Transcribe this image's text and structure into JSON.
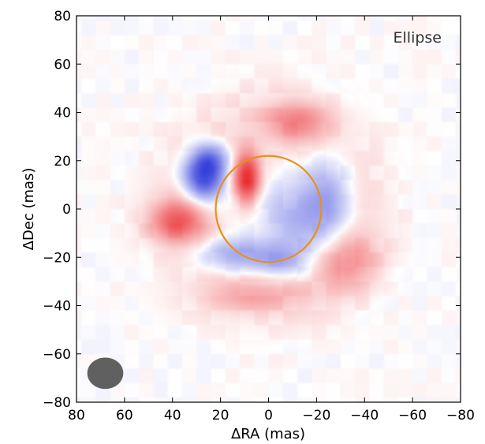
{
  "chart_data": {
    "type": "heatmap",
    "title": "",
    "panel_label": "Ellipse",
    "xlabel": "ΔRA (mas)",
    "ylabel": "ΔDec (mas)",
    "xlim": [
      80,
      -80
    ],
    "ylim": [
      -80,
      80
    ],
    "xticks": [
      80,
      60,
      40,
      20,
      0,
      -20,
      -40,
      -60,
      -80
    ],
    "yticks": [
      -80,
      -60,
      -40,
      -20,
      0,
      20,
      40,
      60,
      80
    ],
    "xtick_labels": [
      "80",
      "60",
      "40",
      "20",
      "0",
      "−20",
      "−40",
      "−60",
      "−80"
    ],
    "ytick_labels": [
      "−80",
      "−60",
      "−40",
      "−20",
      "0",
      "20",
      "40",
      "60",
      "80"
    ],
    "colormap": {
      "negative": "#1f2ad6",
      "zero": "#ffffff",
      "positive": "#e8161b"
    },
    "image_features": [
      {
        "kind": "negative",
        "x": 27,
        "y": 14,
        "sx": 6,
        "sy": 7,
        "amp": 0.95
      },
      {
        "kind": "negative",
        "x": 23,
        "y": 21,
        "sx": 5,
        "sy": 4,
        "amp": 0.35
      },
      {
        "kind": "negative",
        "x": -25,
        "y": 5,
        "sx": 7,
        "sy": 12,
        "amp": 0.38
      },
      {
        "kind": "negative",
        "x": -12,
        "y": -5,
        "sx": 10,
        "sy": 12,
        "amp": 0.3
      },
      {
        "kind": "negative",
        "x": 15,
        "y": -19,
        "sx": 11,
        "sy": 5,
        "amp": 0.4
      },
      {
        "kind": "negative",
        "x": -5,
        "y": -22,
        "sx": 9,
        "sy": 5,
        "amp": 0.28
      },
      {
        "kind": "positive",
        "x": 9,
        "y": 13,
        "sx": 4,
        "sy": 7,
        "amp": 0.9
      },
      {
        "kind": "positive",
        "x": 38,
        "y": -5,
        "sx": 8,
        "sy": 6,
        "amp": 0.6
      },
      {
        "kind": "positive",
        "x": -12,
        "y": 36,
        "sx": 9,
        "sy": 6,
        "amp": 0.38
      },
      {
        "kind": "positive",
        "x": -33,
        "y": -22,
        "sx": 9,
        "sy": 8,
        "amp": 0.33
      },
      {
        "kind": "positive",
        "x": 5,
        "y": -35,
        "sx": 14,
        "sy": 5,
        "amp": 0.22
      },
      {
        "kind": "positive-ring",
        "x": 0,
        "y": 0,
        "radius": 35,
        "width": 12,
        "amp": 0.12
      }
    ],
    "overlay_ellipse": {
      "cx": 0,
      "cy": 0,
      "rx": 22,
      "ry": 22,
      "color": "#e8901a"
    },
    "beam": {
      "cx": 68,
      "cy": -68,
      "rx": 7.5,
      "ry": 6.5,
      "color": "#606060"
    }
  }
}
